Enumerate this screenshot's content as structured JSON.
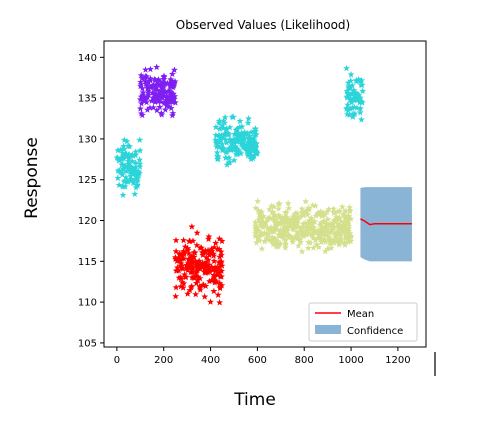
{
  "chart_data": {
    "type": "scatter",
    "title": "Observed Values (Likelihood)",
    "xlabel": "Time",
    "ylabel": "Response",
    "xlim": [
      -55,
      1320
    ],
    "ylim": [
      104.5,
      142
    ],
    "xticks": [
      0,
      200,
      400,
      600,
      800,
      1000,
      1200
    ],
    "yticks": [
      105,
      110,
      115,
      120,
      125,
      130,
      135,
      140
    ],
    "grid": false,
    "legend_position": "lower-right",
    "legend": [
      "Mean",
      "Confidence"
    ],
    "marker": "star",
    "clusters": [
      {
        "color": "#2bd4d8",
        "x_range": [
          0,
          100
        ],
        "y_center": 126.5,
        "y_spread": 2.3
      },
      {
        "color": "#7f1ff1",
        "x_range": [
          100,
          250
        ],
        "y_center": 135.8,
        "y_spread": 2.0
      },
      {
        "color": "#ff0000",
        "x_range": [
          250,
          450
        ],
        "y_center": 114.5,
        "y_spread": 2.8
      },
      {
        "color": "#2bd4d8",
        "x_range": [
          420,
          600
        ],
        "y_center": 129.5,
        "y_spread": 2.0
      },
      {
        "color": "#d4e08c",
        "x_range": [
          590,
          1000
        ],
        "y_center": 119.2,
        "y_spread": 2.0
      },
      {
        "color": "#2bd4d8",
        "x_range": [
          980,
          1050
        ],
        "y_center": 135.3,
        "y_spread": 2.3
      }
    ],
    "mean_series": {
      "name": "Mean",
      "color": "#ff0000",
      "x": [
        1040,
        1060,
        1080,
        1100,
        1150,
        1200,
        1260
      ],
      "y": [
        120.2,
        119.9,
        119.5,
        119.6,
        119.6,
        119.6,
        119.6
      ]
    },
    "confidence_band": {
      "name": "Confidence",
      "color": "#8ab4d6",
      "x": [
        1040,
        1060,
        1080,
        1260
      ],
      "lower": [
        115.5,
        115.2,
        115.0,
        115.0
      ],
      "upper": [
        124.0,
        124.1,
        124.1,
        124.1
      ]
    }
  }
}
